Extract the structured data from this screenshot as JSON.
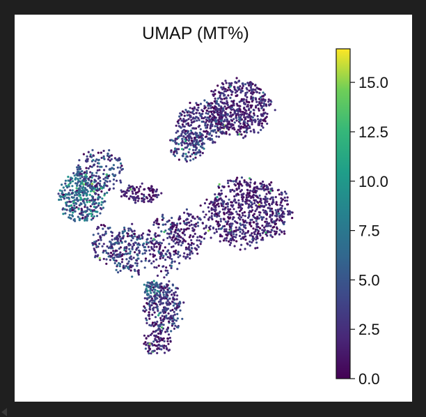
{
  "figure": {
    "title": "UMAP (MT%)",
    "background": "#1f1f1f",
    "panel_background": "#ffffff"
  },
  "chart_data": {
    "type": "scatter",
    "title": "UMAP (MT%)",
    "xlabel": "",
    "ylabel": "",
    "axes_visible": false,
    "grid": false,
    "colormap": "viridis",
    "colorbar": {
      "placement": "right",
      "range": [
        0.0,
        16.7
      ],
      "ticks": [
        0.0,
        2.5,
        5.0,
        7.5,
        10.0,
        12.5,
        15.0
      ],
      "tick_labels": [
        "0.0",
        "2.5",
        "5.0",
        "7.5",
        "10.0",
        "12.5",
        "15.0"
      ]
    },
    "xlim": [
      0,
      100
    ],
    "ylim": [
      0,
      100
    ],
    "clusters": [
      {
        "cx": 70,
        "cy": 85,
        "rx": 11,
        "ry": 9,
        "n": 520,
        "mt_mean": 2.0,
        "mt_sd": 1.5
      },
      {
        "cx": 57,
        "cy": 80,
        "rx": 9,
        "ry": 7,
        "n": 300,
        "mt_mean": 2.8,
        "mt_sd": 2.0
      },
      {
        "cx": 52,
        "cy": 73,
        "rx": 6,
        "ry": 5,
        "n": 120,
        "mt_mean": 3.5,
        "mt_sd": 2.4
      },
      {
        "cx": 72,
        "cy": 52,
        "rx": 15,
        "ry": 11,
        "n": 720,
        "mt_mean": 1.8,
        "mt_sd": 1.4
      },
      {
        "cx": 52,
        "cy": 45,
        "rx": 6,
        "ry": 8,
        "n": 140,
        "mt_mean": 2.0,
        "mt_sd": 1.6
      },
      {
        "cx": 16,
        "cy": 57,
        "rx": 8,
        "ry": 8,
        "n": 360,
        "mt_mean": 6.0,
        "mt_sd": 2.8
      },
      {
        "cx": 22,
        "cy": 65,
        "rx": 8,
        "ry": 7,
        "n": 160,
        "mt_mean": 3.8,
        "mt_sd": 2.2
      },
      {
        "cx": 36,
        "cy": 58,
        "rx": 7,
        "ry": 3,
        "n": 110,
        "mt_mean": 1.5,
        "mt_sd": 1.2
      },
      {
        "cx": 44,
        "cy": 42,
        "rx": 6,
        "ry": 10,
        "n": 170,
        "mt_mean": 2.5,
        "mt_sd": 1.8
      },
      {
        "cx": 32,
        "cy": 40,
        "rx": 7,
        "ry": 8,
        "n": 200,
        "mt_mean": 3.6,
        "mt_sd": 2.2
      },
      {
        "cx": 44,
        "cy": 22,
        "rx": 7,
        "ry": 8,
        "n": 280,
        "mt_mean": 3.0,
        "mt_sd": 2.0
      },
      {
        "cx": 42,
        "cy": 11,
        "rx": 5,
        "ry": 4,
        "n": 90,
        "mt_mean": 2.0,
        "mt_sd": 1.4
      },
      {
        "cx": 40,
        "cy": 28,
        "rx": 3,
        "ry": 3,
        "n": 50,
        "mt_mean": 6.0,
        "mt_sd": 2.4
      },
      {
        "cx": 24,
        "cy": 42,
        "rx": 5,
        "ry": 6,
        "n": 80,
        "mt_mean": 3.0,
        "mt_sd": 2.0
      }
    ]
  }
}
